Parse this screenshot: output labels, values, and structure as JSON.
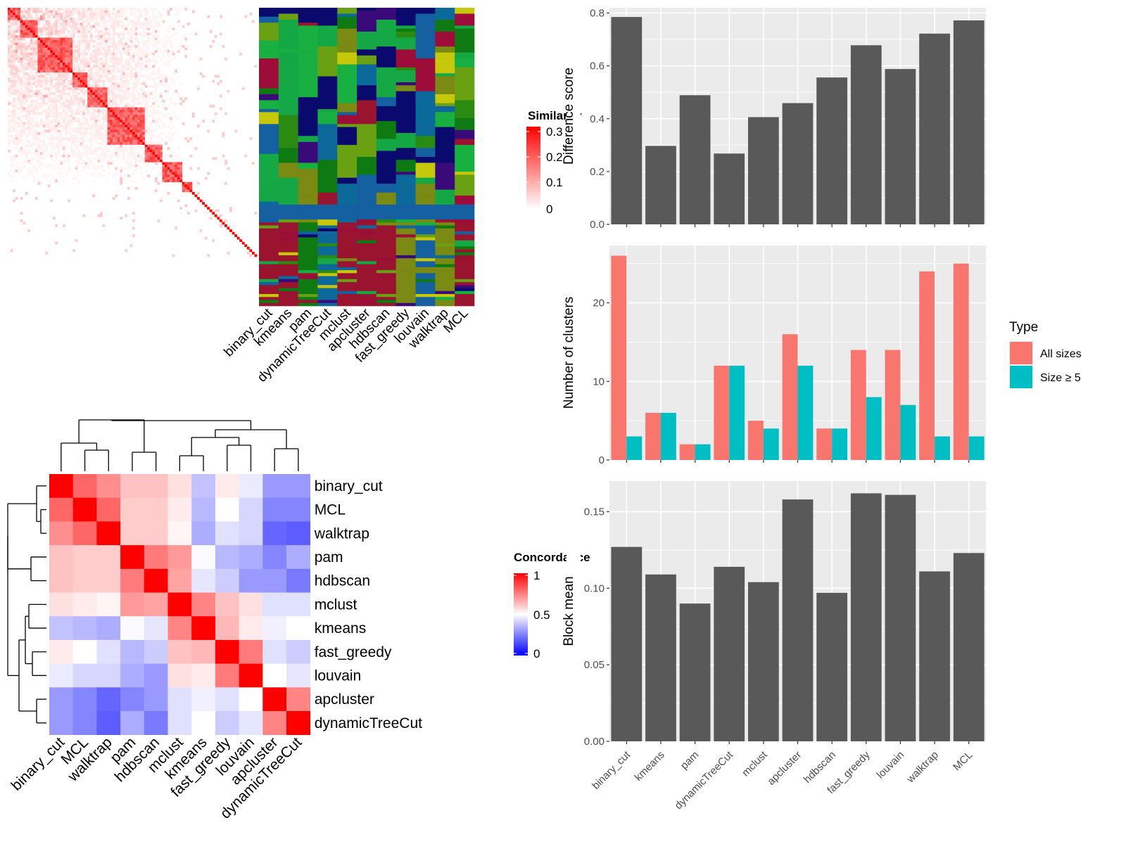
{
  "methods_order": [
    "binary_cut",
    "kmeans",
    "pam",
    "dynamicTreeCut",
    "mclust",
    "apcluster",
    "hdbscan",
    "fast_greedy",
    "louvain",
    "walktrap",
    "MCL"
  ],
  "similarity_heatmap": {
    "legend_title": "Similarity",
    "legend_ticks": [
      "0.3",
      "0.2",
      "0.1",
      "0"
    ]
  },
  "cluster_assignment_labels": [
    "binary_cut",
    "kmeans",
    "pam",
    "dynamicTreeCut",
    "mclust",
    "apcluster",
    "hdbscan",
    "fast_greedy",
    "louvain",
    "walktrap",
    "MCL"
  ],
  "concordance": {
    "legend_title": "Concordance",
    "legend_ticks": [
      "1",
      "0.5",
      "0"
    ],
    "order": [
      "binary_cut",
      "MCL",
      "walktrap",
      "pam",
      "hdbscan",
      "mclust",
      "kmeans",
      "fast_greedy",
      "louvain",
      "apcluster",
      "dynamicTreeCut"
    ]
  },
  "chart_data": [
    {
      "type": "heatmap",
      "title": "",
      "rows": [
        "binary_cut",
        "MCL",
        "walktrap",
        "pam",
        "hdbscan",
        "mclust",
        "kmeans",
        "fast_greedy",
        "louvain",
        "apcluster",
        "dynamicTreeCut"
      ],
      "columns": [
        "binary_cut",
        "MCL",
        "walktrap",
        "pam",
        "hdbscan",
        "mclust",
        "kmeans",
        "fast_greedy",
        "louvain",
        "apcluster",
        "dynamicTreeCut"
      ],
      "values": [
        [
          1.0,
          0.8,
          0.72,
          0.62,
          0.62,
          0.56,
          0.38,
          0.54,
          0.46,
          0.3,
          0.3
        ],
        [
          0.8,
          1.0,
          0.8,
          0.6,
          0.6,
          0.54,
          0.36,
          0.5,
          0.42,
          0.26,
          0.26
        ],
        [
          0.72,
          0.8,
          1.0,
          0.6,
          0.6,
          0.52,
          0.34,
          0.44,
          0.42,
          0.2,
          0.18
        ],
        [
          0.62,
          0.6,
          0.6,
          1.0,
          0.76,
          0.7,
          0.49,
          0.36,
          0.34,
          0.26,
          0.34
        ],
        [
          0.62,
          0.6,
          0.6,
          0.76,
          1.0,
          0.68,
          0.45,
          0.4,
          0.3,
          0.3,
          0.24
        ],
        [
          0.56,
          0.54,
          0.52,
          0.7,
          0.68,
          1.0,
          0.74,
          0.62,
          0.56,
          0.44,
          0.44
        ],
        [
          0.38,
          0.36,
          0.34,
          0.49,
          0.45,
          0.74,
          1.0,
          0.64,
          0.54,
          0.47,
          0.5
        ],
        [
          0.54,
          0.5,
          0.44,
          0.36,
          0.4,
          0.62,
          0.64,
          1.0,
          0.76,
          0.44,
          0.4
        ],
        [
          0.46,
          0.42,
          0.42,
          0.34,
          0.3,
          0.56,
          0.54,
          0.76,
          1.0,
          0.5,
          0.45
        ],
        [
          0.3,
          0.26,
          0.2,
          0.26,
          0.3,
          0.44,
          0.47,
          0.44,
          0.5,
          1.0,
          0.74
        ],
        [
          0.3,
          0.26,
          0.18,
          0.34,
          0.24,
          0.44,
          0.5,
          0.4,
          0.45,
          0.74,
          1.0
        ]
      ],
      "color_scale": {
        "low": "#0000ff",
        "mid": "#ffffff",
        "high": "#ff0000",
        "range": [
          0,
          1
        ]
      }
    },
    {
      "type": "bar",
      "title": "",
      "ylabel": "Difference score",
      "xlabel": "",
      "categories": [
        "binary_cut",
        "kmeans",
        "pam",
        "dynamicTreeCut",
        "mclust",
        "apcluster",
        "hdbscan",
        "fast_greedy",
        "louvain",
        "walktrap",
        "MCL"
      ],
      "values": [
        0.785,
        0.297,
        0.489,
        0.268,
        0.406,
        0.459,
        0.556,
        0.678,
        0.588,
        0.722,
        0.772
      ],
      "ylim": [
        0,
        0.82
      ],
      "yticks": [
        "0.0",
        "0.2",
        "0.4",
        "0.6",
        "0.8"
      ],
      "bar_color": "#595959",
      "grid": true
    },
    {
      "type": "bar",
      "title": "",
      "ylabel": "Number of clusters",
      "xlabel": "",
      "categories": [
        "binary_cut",
        "kmeans",
        "pam",
        "dynamicTreeCut",
        "mclust",
        "apcluster",
        "hdbscan",
        "fast_greedy",
        "louvain",
        "walktrap",
        "MCL"
      ],
      "series": [
        {
          "name": "All sizes",
          "color": "#f8766d",
          "values": [
            26,
            6,
            2,
            12,
            5,
            16,
            4,
            14,
            14,
            24,
            25
          ]
        },
        {
          "name": "Size ≥ 5",
          "color": "#00bfc4",
          "values": [
            3,
            6,
            2,
            12,
            4,
            12,
            4,
            8,
            7,
            3,
            3
          ]
        }
      ],
      "ylim": [
        0,
        27.3
      ],
      "yticks": [
        "0",
        "10",
        "20"
      ],
      "legend": {
        "title": "Type",
        "position": "right"
      },
      "grid": true
    },
    {
      "type": "bar",
      "title": "",
      "ylabel": "Block mean",
      "xlabel": "",
      "categories": [
        "binary_cut",
        "kmeans",
        "pam",
        "dynamicTreeCut",
        "mclust",
        "apcluster",
        "hdbscan",
        "fast_greedy",
        "louvain",
        "walktrap",
        "MCL"
      ],
      "values": [
        0.127,
        0.109,
        0.09,
        0.114,
        0.104,
        0.158,
        0.097,
        0.162,
        0.161,
        0.111,
        0.123
      ],
      "ylim": [
        0,
        0.17
      ],
      "yticks": [
        "0.00",
        "0.05",
        "0.10",
        "0.15"
      ],
      "bar_color": "#595959",
      "grid": true
    }
  ]
}
